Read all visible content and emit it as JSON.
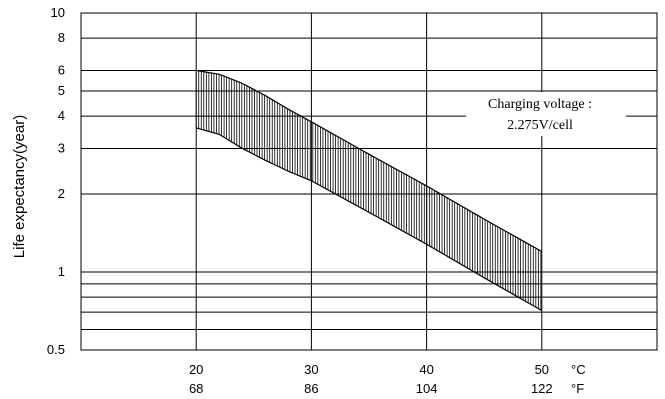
{
  "chart_data": {
    "type": "area",
    "ylabel": "Life expectancy(year)",
    "y_scale": "log",
    "ylim": [
      0.5,
      10
    ],
    "y_ticks": [
      "10",
      "8",
      "6",
      "5",
      "4",
      "3",
      "2",
      "1",
      "0.5"
    ],
    "y_tick_values": [
      10,
      8,
      6,
      5,
      4,
      3,
      2,
      1,
      0.5
    ],
    "y_extra_gridlines": [
      0.9,
      0.8,
      0.7,
      0.6
    ],
    "xlim": [
      10,
      60
    ],
    "x_ticks_c": [
      "20",
      "30",
      "40",
      "50"
    ],
    "x_tick_values": [
      20,
      30,
      40,
      50
    ],
    "x_ticks_f": [
      "68",
      "86",
      "104",
      "122"
    ],
    "x_unit_c": "°C",
    "x_unit_f": "°F",
    "grid": true,
    "annotation": {
      "line1": "Charging voltage :",
      "line2": "2.275V/cell"
    },
    "series": [
      {
        "x": [
          20,
          22,
          24,
          26,
          28,
          30,
          35,
          40,
          45,
          50
        ],
        "values": [
          6.0,
          5.8,
          5.35,
          4.8,
          4.25,
          3.8,
          2.85,
          2.15,
          1.6,
          1.2
        ]
      },
      {
        "x": [
          20,
          22,
          24,
          26,
          28,
          30,
          35,
          40,
          45,
          50
        ],
        "values": [
          3.6,
          3.4,
          3.0,
          2.7,
          2.45,
          2.25,
          1.7,
          1.28,
          0.95,
          0.71
        ]
      }
    ]
  }
}
